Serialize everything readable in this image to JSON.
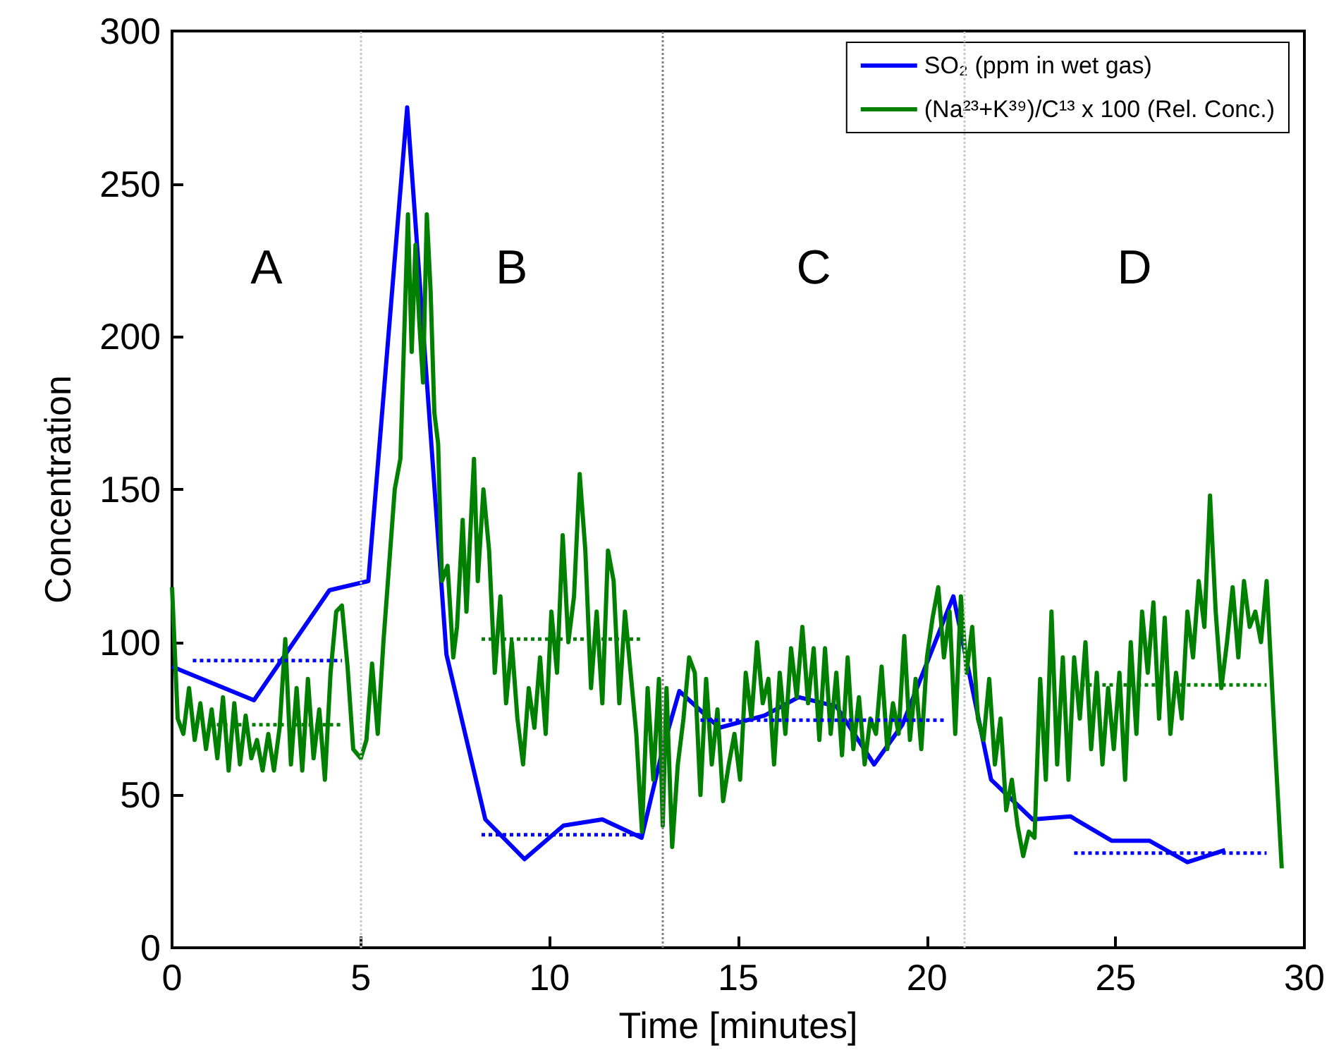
{
  "chart_data": {
    "type": "line",
    "xlabel": "Time [minutes]",
    "ylabel": "Concentration",
    "xlim": [
      0,
      30
    ],
    "xticks": [
      0,
      5,
      10,
      15,
      20,
      25,
      30
    ],
    "ylim": [
      0,
      300
    ],
    "yticks": [
      0,
      50,
      100,
      150,
      200,
      250,
      300
    ],
    "grid": false,
    "legend": "top right",
    "marker": "none",
    "line_style": "solid",
    "series": [
      {
        "name": "SO₂ (ppm in wet gas)",
        "color": "#0000ff",
        "x": [
          0,
          2.17,
          4.17,
          5.2,
          6.23,
          7.27,
          8.3,
          9.34,
          10.37,
          11.4,
          12.44,
          13.0,
          13.44,
          14.5,
          15.7,
          16.6,
          17.6,
          18.6,
          19.35,
          20.7,
          21.7,
          22.8,
          23.8,
          24.9,
          25.9,
          26.9,
          27.9
        ],
        "values": [
          92,
          81,
          117,
          120,
          275,
          96,
          42,
          29,
          40,
          42,
          36,
          65,
          84,
          72,
          76,
          82,
          79,
          60,
          73,
          115,
          55,
          42,
          43,
          35,
          35,
          28,
          32
        ]
      },
      {
        "name": "(Na²³+K³⁹)/C¹³ x 100 (Rel. Conc.)",
        "color": "#008000",
        "x": [
          0,
          0.15,
          0.3,
          0.45,
          0.6,
          0.75,
          0.9,
          1.05,
          1.2,
          1.35,
          1.5,
          1.65,
          1.8,
          1.95,
          2.1,
          2.25,
          2.4,
          2.55,
          2.7,
          2.85,
          3.0,
          3.15,
          3.3,
          3.45,
          3.6,
          3.75,
          3.9,
          4.05,
          4.2,
          4.35,
          4.5,
          4.65,
          4.8,
          5.0,
          5.15,
          5.3,
          5.45,
          5.6,
          5.75,
          5.9,
          6.05,
          6.15,
          6.25,
          6.35,
          6.45,
          6.55,
          6.65,
          6.75,
          6.85,
          6.95,
          7.05,
          7.15,
          7.3,
          7.45,
          7.55,
          7.7,
          7.8,
          7.9,
          8.0,
          8.1,
          8.25,
          8.4,
          8.55,
          8.7,
          8.85,
          9.0,
          9.15,
          9.3,
          9.45,
          9.6,
          9.75,
          9.9,
          10.05,
          10.2,
          10.35,
          10.5,
          10.65,
          10.8,
          10.95,
          11.1,
          11.25,
          11.4,
          11.55,
          11.7,
          11.85,
          12.0,
          12.15,
          12.3,
          12.45,
          12.6,
          12.75,
          12.9,
          13.0,
          13.1,
          13.25,
          13.4,
          13.55,
          13.7,
          13.85,
          14.0,
          14.15,
          14.3,
          14.45,
          14.6,
          14.75,
          14.9,
          15.05,
          15.2,
          15.35,
          15.5,
          15.65,
          15.8,
          15.95,
          16.1,
          16.25,
          16.4,
          16.55,
          16.7,
          16.85,
          17.0,
          17.15,
          17.3,
          17.45,
          17.6,
          17.75,
          17.9,
          18.05,
          18.2,
          18.35,
          18.5,
          18.65,
          18.8,
          18.95,
          19.1,
          19.25,
          19.4,
          19.55,
          19.7,
          19.85,
          20.0,
          20.15,
          20.3,
          20.45,
          20.6,
          20.75,
          20.9,
          21.05,
          21.2,
          21.35,
          21.5,
          21.65,
          21.8,
          21.95,
          22.1,
          22.25,
          22.4,
          22.55,
          22.7,
          22.85,
          23.0,
          23.15,
          23.3,
          23.45,
          23.6,
          23.75,
          23.9,
          24.05,
          24.2,
          24.35,
          24.5,
          24.65,
          24.8,
          24.95,
          25.1,
          25.25,
          25.4,
          25.55,
          25.7,
          25.85,
          26.0,
          26.15,
          26.3,
          26.45,
          26.6,
          26.75,
          26.9,
          27.05,
          27.2,
          27.35,
          27.5,
          27.65,
          27.8,
          27.95,
          28.1,
          28.25,
          28.4,
          28.55,
          28.7,
          28.85,
          29.0,
          29.25,
          29.4
        ],
        "values": [
          118,
          75,
          70,
          85,
          68,
          80,
          65,
          78,
          62,
          82,
          58,
          80,
          60,
          76,
          62,
          68,
          58,
          70,
          58,
          72,
          101,
          60,
          85,
          58,
          88,
          62,
          78,
          55,
          90,
          110,
          112,
          92,
          65,
          62,
          68,
          93,
          70,
          100,
          125,
          150,
          160,
          200,
          240,
          195,
          230,
          205,
          185,
          240,
          215,
          175,
          165,
          120,
          125,
          95,
          105,
          140,
          110,
          135,
          160,
          120,
          150,
          130,
          90,
          115,
          80,
          100,
          75,
          60,
          85,
          72,
          95,
          70,
          110,
          90,
          135,
          100,
          115,
          155,
          130,
          85,
          110,
          80,
          130,
          120,
          80,
          110,
          90,
          70,
          38,
          85,
          55,
          88,
          40,
          85,
          33,
          60,
          75,
          95,
          90,
          50,
          88,
          60,
          78,
          48,
          60,
          70,
          55,
          90,
          75,
          100,
          80,
          88,
          60,
          90,
          70,
          98,
          82,
          105,
          80,
          98,
          68,
          98,
          70,
          90,
          63,
          95,
          65,
          82,
          60,
          75,
          70,
          92,
          65,
          80,
          70,
          102,
          68,
          88,
          65,
          95,
          108,
          118,
          95,
          110,
          70,
          115,
          90,
          105,
          75,
          68,
          88,
          60,
          75,
          45,
          55,
          40,
          30,
          38,
          36,
          88,
          55,
          110,
          60,
          95,
          55,
          95,
          75,
          100,
          65,
          90,
          60,
          85,
          65,
          90,
          55,
          100,
          70,
          110,
          90,
          113,
          75,
          108,
          70,
          90,
          75,
          110,
          95,
          120,
          105,
          148,
          110,
          85,
          100,
          118,
          95,
          120,
          105,
          110,
          100,
          120,
          60,
          26
        ]
      },
      {
        "color": "#0000ff",
        "line_style": "dotted",
        "x": [
          0.55,
          4.5
        ],
        "values": [
          94,
          94
        ]
      },
      {
        "color": "#008000",
        "line_style": "dotted",
        "x": [
          1.0,
          4.5
        ],
        "values": [
          73,
          73
        ]
      },
      {
        "color": "#0000ff",
        "line_style": "dotted",
        "x": [
          8.2,
          12.4
        ],
        "values": [
          37,
          37
        ]
      },
      {
        "color": "#008000",
        "line_style": "dotted",
        "x": [
          8.2,
          12.4
        ],
        "values": [
          101,
          101
        ]
      },
      {
        "color": "#0000ff",
        "line_style": "dotted",
        "x": [
          14.0,
          20.5
        ],
        "values": [
          74.5,
          74.5
        ]
      },
      {
        "color": "#0000ff",
        "line_style": "dotted",
        "x": [
          23.9,
          29.0
        ],
        "values": [
          31,
          31
        ]
      },
      {
        "color": "#008000",
        "line_style": "dotted",
        "x": [
          23.9,
          29.0
        ],
        "values": [
          86,
          86
        ]
      }
    ],
    "ref_lines": [
      {
        "axis": "x",
        "value": 5,
        "color": "#c8c8c8",
        "line_style": "dotted"
      },
      {
        "axis": "x",
        "value": 13,
        "color": "#808080",
        "line_style": "dotted"
      },
      {
        "axis": "x",
        "value": 21,
        "color": "#c8c8c8",
        "line_style": "dotted"
      }
    ],
    "annotations": [
      "A",
      "B",
      "C",
      "D"
    ]
  }
}
